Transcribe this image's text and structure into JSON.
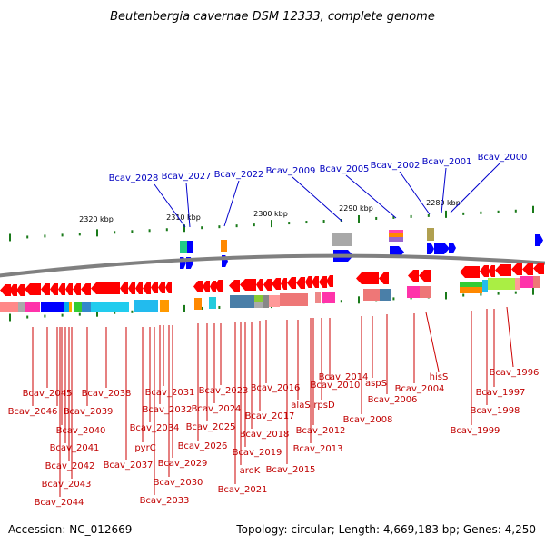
{
  "title": "Beutenbergia cavernae DSM 12333, complete genome",
  "accession": "Accession: NC_012669",
  "summary": "Topology: circular; Length: 4,669,183 bp; Genes: 4,250",
  "scale_labels": [
    "2320 kbp",
    "2310 kbp",
    "2300 kbp",
    "2290 kbp",
    "2280 kbp"
  ],
  "top_genes": [
    "Bcav_2028",
    "Bcav_2027",
    "Bcav_2022",
    "Bcav_2009",
    "Bcav_2005",
    "Bcav_2002",
    "Bcav_2001",
    "Bcav_2000"
  ],
  "bottom_genes": [
    "Bcav_2045",
    "Bcav_2046",
    "Bcav_2039",
    "Bcav_2040",
    "Bcav_2041",
    "Bcav_2042",
    "Bcav_2043",
    "Bcav_2044",
    "Bcav_2038",
    "Bcav_2037",
    "pyrC",
    "Bcav_2034",
    "Bcav_2033",
    "Bcav_2032",
    "Bcav_2031",
    "Bcav_2030",
    "Bcav_2029",
    "Bcav_2026",
    "Bcav_2025",
    "Bcav_2024",
    "Bcav_2023",
    "Bcav_2021",
    "aroK",
    "Bcav_2019",
    "Bcav_2018",
    "Bcav_2017",
    "Bcav_2016",
    "Bcav_2015",
    "Bcav_2014",
    "Bcav_2013",
    "Bcav_2012",
    "alaS",
    "rpsD",
    "Bcav_2010",
    "Bcav_2008",
    "aspS",
    "Bcav_2006",
    "Bcav_2004",
    "hisS",
    "Bcav_1999",
    "Bcav_1998",
    "Bcav_1997",
    "Bcav_1996"
  ],
  "colors": {
    "forward": "#0000ff",
    "reverse": "#ff0000",
    "top_label": "#0000c0",
    "bottom_label": "#c00000",
    "tick": "#1a7a1a",
    "backbone": "#808080"
  }
}
